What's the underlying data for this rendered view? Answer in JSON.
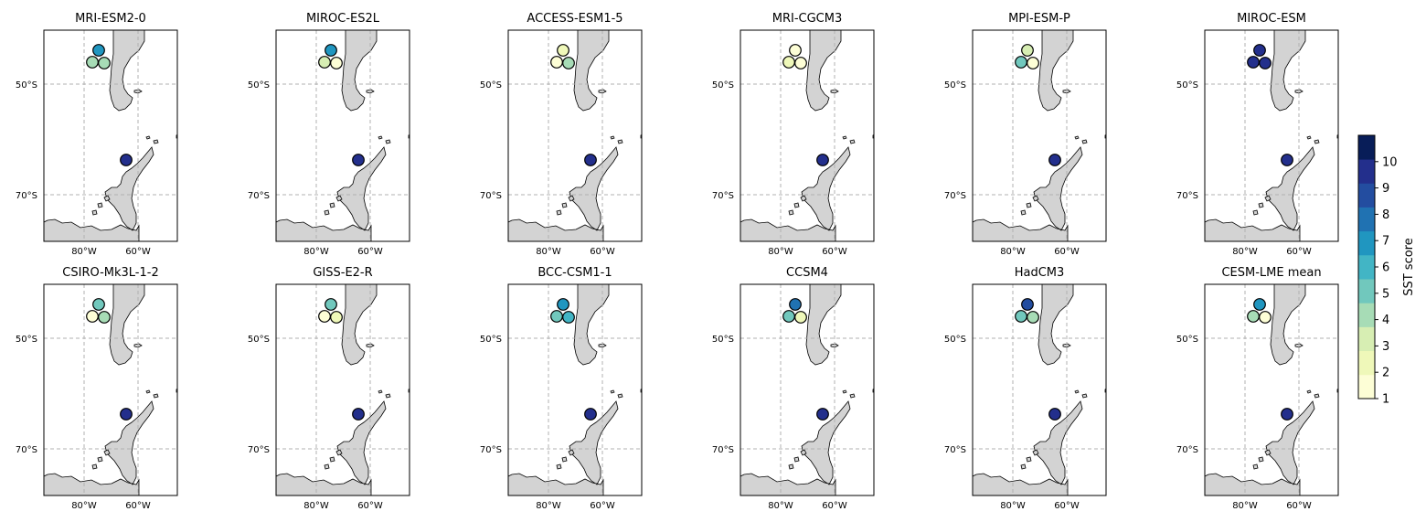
{
  "figure": {
    "colorbar": {
      "label": "SST score",
      "ticks": [
        "1",
        "2",
        "3",
        "4",
        "5",
        "6",
        "7",
        "8",
        "9",
        "10"
      ],
      "colors": [
        "#fdfed6",
        "#eff8b9",
        "#d7eeb3",
        "#a7dcb6",
        "#71c8bd",
        "#42b5c5",
        "#2096c0",
        "#2072b2",
        "#234da0",
        "#232f8c",
        "#081d58"
      ]
    },
    "axis_labels": {
      "lat_50": "50°S",
      "lat_70": "70°S",
      "lon_80": "80°W",
      "lon_60": "60°W"
    },
    "land_color": "#d3d3d3",
    "panels": [
      {
        "title": "MRI-ESM2-0",
        "top": 7,
        "left": 4,
        "right": 4,
        "south": 10
      },
      {
        "title": "MIROC-ES2L",
        "top": 7,
        "left": 3,
        "right": 1,
        "south": 10
      },
      {
        "title": "ACCESS-ESM1-5",
        "top": 2,
        "left": 1,
        "right": 4,
        "south": 10
      },
      {
        "title": "MRI-CGCM3",
        "top": 1,
        "left": 2,
        "right": 1,
        "south": 10
      },
      {
        "title": "MPI-ESM-P",
        "top": 3,
        "left": 5,
        "right": 1,
        "south": 10
      },
      {
        "title": "MIROC-ESM",
        "top": 10,
        "left": 10,
        "right": 10,
        "south": 10
      },
      {
        "title": "CSIRO-Mk3L-1-2",
        "top": 5,
        "left": 1,
        "right": 4,
        "south": 10
      },
      {
        "title": "GISS-E2-R",
        "top": 5,
        "left": 1,
        "right": 2,
        "south": 10
      },
      {
        "title": "BCC-CSM1-1",
        "top": 7,
        "left": 5,
        "right": 6,
        "south": 10
      },
      {
        "title": "CCSM4",
        "top": 8,
        "left": 5,
        "right": 2,
        "south": 10
      },
      {
        "title": "HadCM3",
        "top": 9,
        "left": 5,
        "right": 4,
        "south": 10
      },
      {
        "title": "CESM-LME mean",
        "top": 7,
        "left": 4,
        "right": 1,
        "south": 10
      }
    ]
  }
}
